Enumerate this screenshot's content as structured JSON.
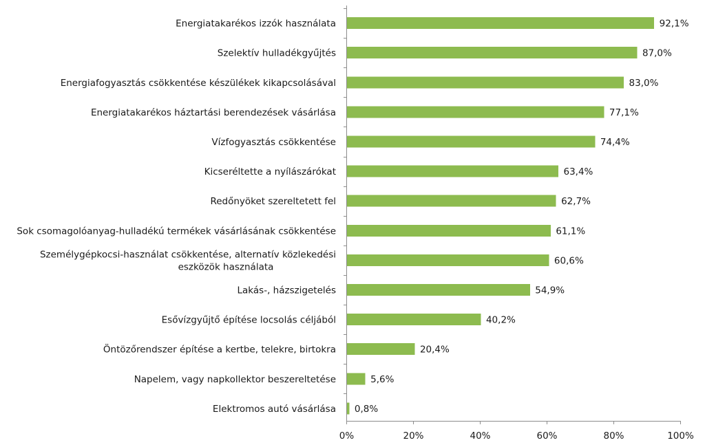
{
  "chart_data": {
    "type": "bar",
    "orientation": "horizontal",
    "title": "",
    "xlabel": "",
    "ylabel": "",
    "xlim": [
      0,
      100
    ],
    "grid": false,
    "legend": "none",
    "bar_color": "#8dbb4f",
    "ticks": [
      {
        "value": 0,
        "label": "0%"
      },
      {
        "value": 20,
        "label": "20%"
      },
      {
        "value": 40,
        "label": "40%"
      },
      {
        "value": 60,
        "label": "60%"
      },
      {
        "value": 80,
        "label": "80%"
      },
      {
        "value": 100,
        "label": "100%"
      }
    ],
    "categories": [
      [
        "Energiatakarékos izzók használata"
      ],
      [
        "Szelektív hulladékgyűjtés"
      ],
      [
        "Energiafogyasztás csökkentése készülékek kikapcsolásával"
      ],
      [
        "Energiatakarékos háztartási berendezések vásárlása"
      ],
      [
        "Vízfogyasztás csökkentése"
      ],
      [
        "Kicseréltette a nyílászárókat"
      ],
      [
        "Redőnyöket szereltetett fel"
      ],
      [
        "Sok csomagolóanyag-hulladékú termékek vásárlásának csökkentése"
      ],
      [
        "Személygépkocsi-használat csökkentése, alternatív közlekedési",
        "eszközök használata"
      ],
      [
        "Lakás-, házszigetelés"
      ],
      [
        "Esővízgyűjtő építése locsolás céljából"
      ],
      [
        "Öntözőrendszer építése a kertbe, telekre, birtokra"
      ],
      [
        "Napelem, vagy napkollektor beszereltetése"
      ],
      [
        "Elektromos autó vásárlása"
      ]
    ],
    "values": [
      92.1,
      87.0,
      83.0,
      77.1,
      74.4,
      63.4,
      62.7,
      61.1,
      60.6,
      54.9,
      40.2,
      20.4,
      5.6,
      0.8
    ],
    "value_labels": [
      "92,1%",
      "87,0%",
      "83,0%",
      "77,1%",
      "74,4%",
      "63,4%",
      "62,7%",
      "61,1%",
      "60,6%",
      "54,9%",
      "40,2%",
      "20,4%",
      "5,6%",
      "0,8%"
    ]
  }
}
